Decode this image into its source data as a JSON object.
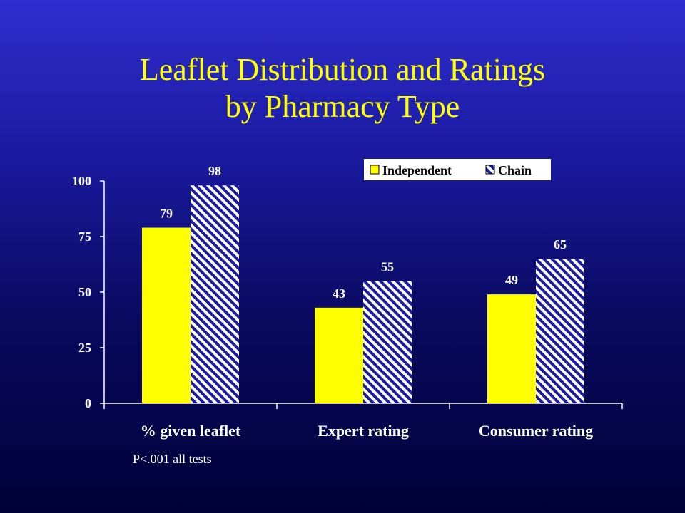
{
  "title": {
    "line1": "Leaflet Distribution and Ratings",
    "line2": "by Pharmacy Type"
  },
  "footnote": "P<.001 all tests",
  "colors": {
    "text_title": "#ffff00",
    "independent": "#ffff00",
    "chain_fill": "#ffffff",
    "chain_stripe": "#1c1c9c",
    "axis": "#ffffff"
  },
  "chart_data": {
    "type": "bar",
    "categories": [
      "% given leaflet",
      "Expert rating",
      "Consumer rating"
    ],
    "series": [
      {
        "name": "Independent",
        "values": [
          79,
          43,
          49
        ],
        "pattern": "solid"
      },
      {
        "name": "Chain",
        "values": [
          98,
          55,
          65
        ],
        "pattern": "diagonal-hatch"
      }
    ],
    "yticks": [
      0,
      25,
      50,
      75,
      100
    ],
    "ylim": [
      0,
      100
    ],
    "data_labels": true,
    "legend_position": "top-right",
    "grid": false
  }
}
